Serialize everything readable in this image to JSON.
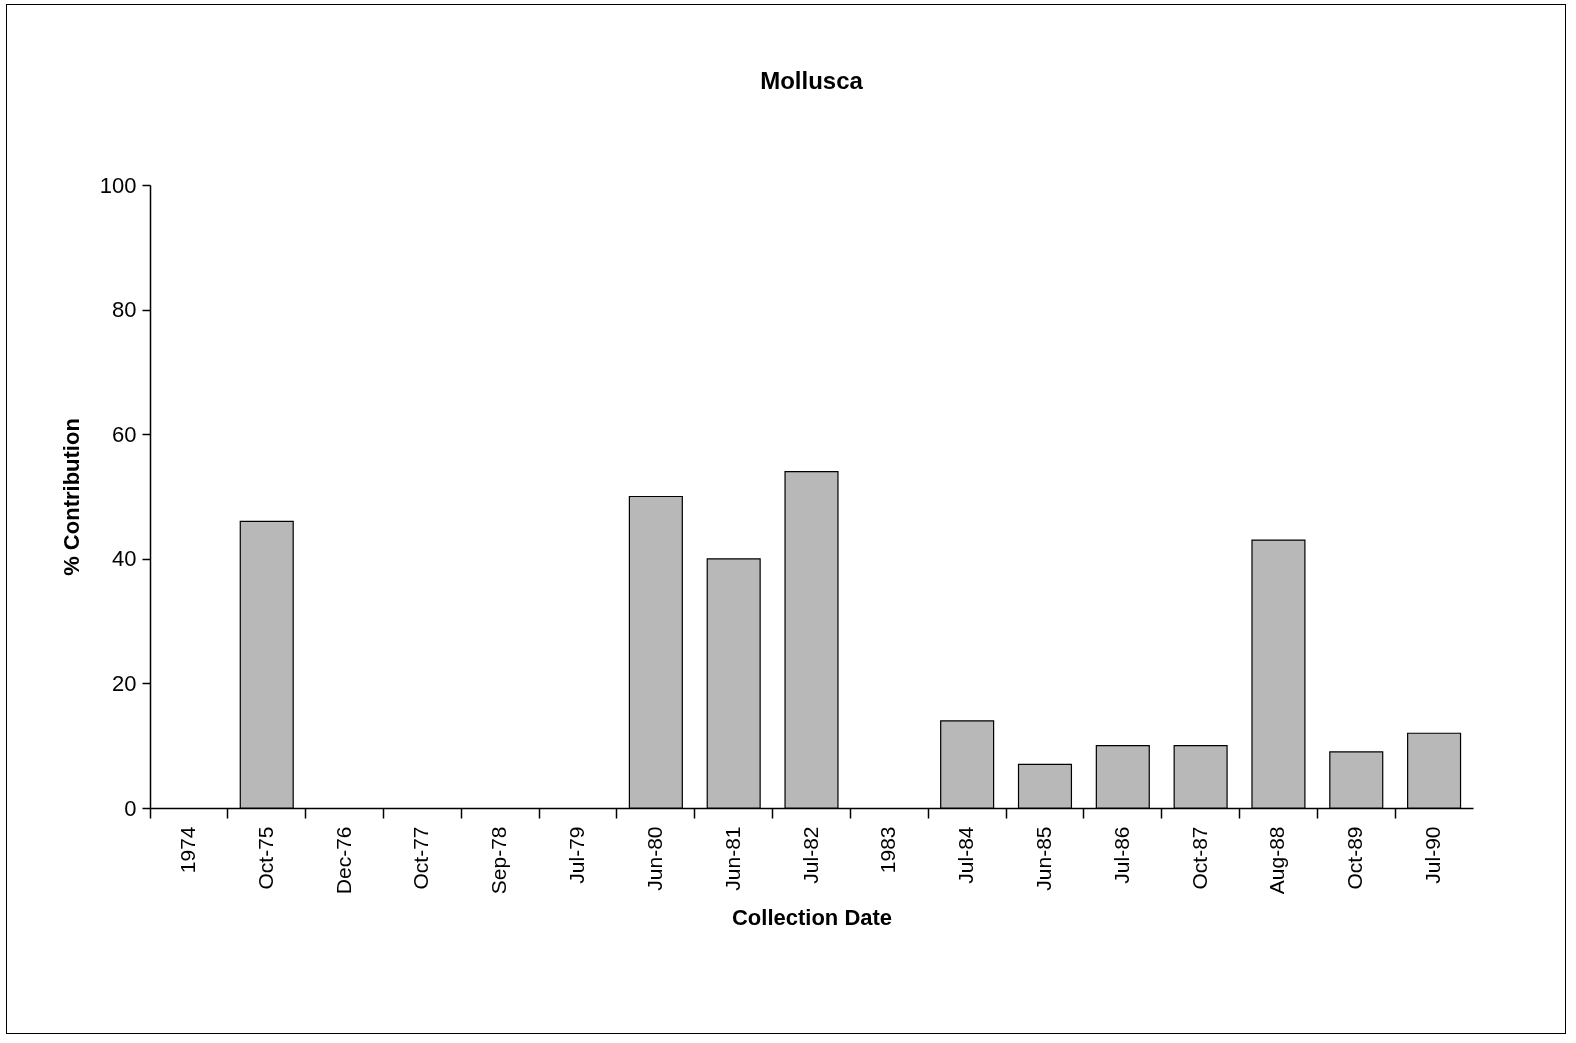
{
  "chart_data": {
    "type": "bar",
    "title": "Mollusca",
    "xlabel": "Collection Date",
    "ylabel": "% Contribution",
    "categories": [
      "1974",
      "Oct-75",
      "Dec-76",
      "Oct-77",
      "Sep-78",
      "Jul-79",
      "Jun-80",
      "Jun-81",
      "Jul-82",
      "1983",
      "Jul-84",
      "Jun-85",
      "Jul-86",
      "Oct-87",
      "Aug-88",
      "Oct-89",
      "Jul-90"
    ],
    "values": [
      0,
      46,
      0,
      0,
      0,
      0,
      50,
      40,
      54,
      0,
      14,
      7,
      10,
      10,
      43,
      9,
      12
    ],
    "color": "#b8b8b8",
    "ylim": [
      0,
      100
    ],
    "yticks": [
      0,
      20,
      40,
      60,
      80,
      100
    ]
  }
}
